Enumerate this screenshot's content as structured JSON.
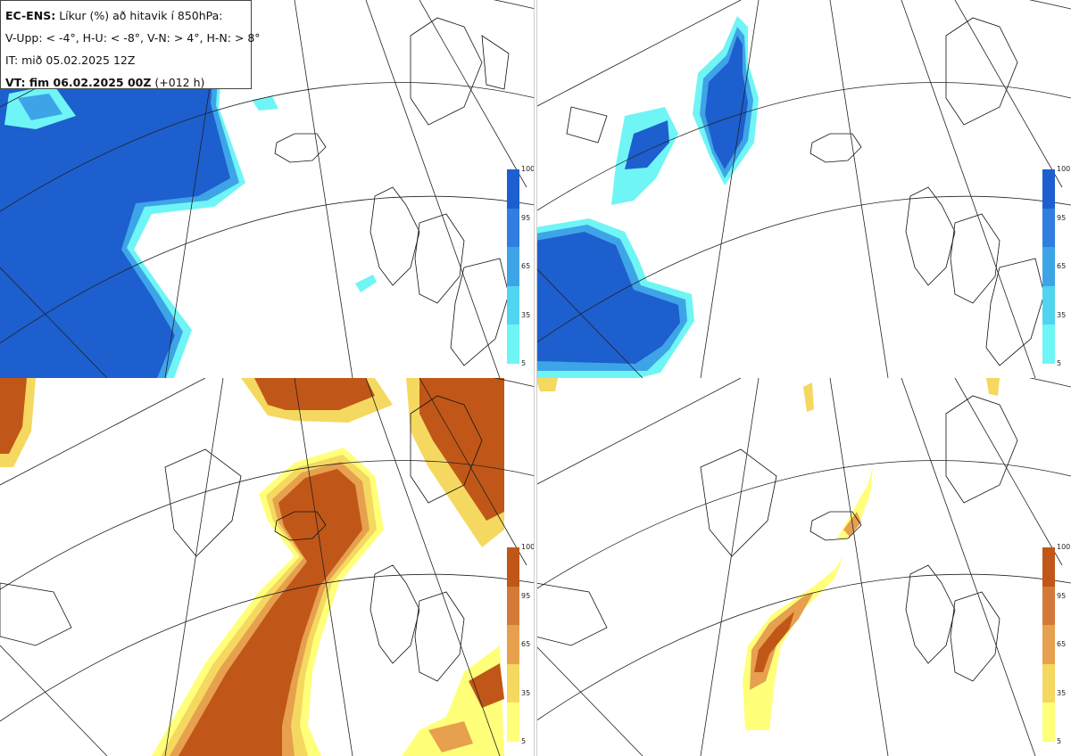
{
  "title": {
    "model": "EC-ENS:",
    "description": "Líkur (%) að hitavik í 850hPa:",
    "thresholds": "V-Upp: < -4°, H-U: < -8°, V-N: > 4°, H-N: > 8°",
    "init_time": "IT: mið 05.02.2025 12Z",
    "valid_label": "VT: fim 06.02.2025 00Z",
    "lead": "(+012 h)"
  },
  "colorbar": {
    "ticks": [
      "100",
      "95",
      "65",
      "35",
      "5"
    ],
    "cold_colors": [
      "#6ff5f5",
      "#50d4f0",
      "#3ea4e8",
      "#2f7ee0",
      "#1d5fce"
    ],
    "warm_colors": [
      "#ffff7a",
      "#f5d860",
      "#e6a04e",
      "#d47a38",
      "#c05718"
    ]
  },
  "panels": [
    {
      "id": "top-left",
      "field": "cold anomaly < -4°",
      "palette": "cold"
    },
    {
      "id": "top-right",
      "field": "cold anomaly < -8°",
      "palette": "cold"
    },
    {
      "id": "bottom-left",
      "field": "warm anomaly > 4°",
      "palette": "warm"
    },
    {
      "id": "bottom-right",
      "field": "warm anomaly > 8°",
      "palette": "warm"
    }
  ]
}
